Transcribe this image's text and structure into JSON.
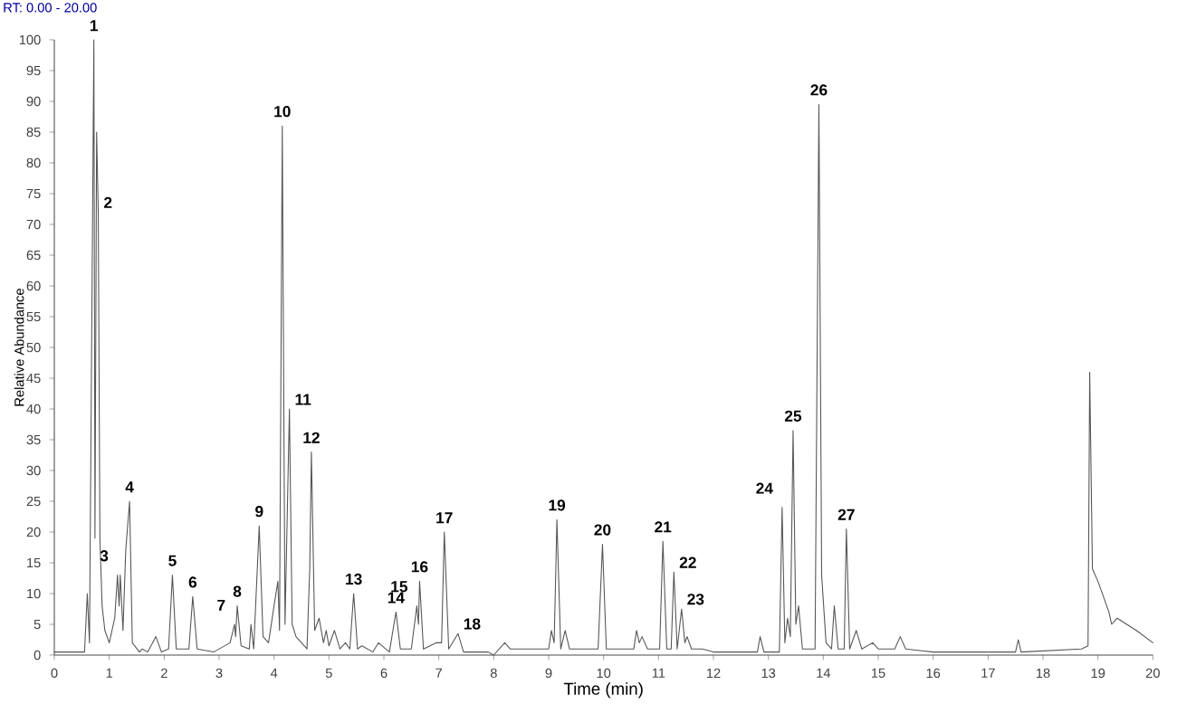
{
  "chart_data": {
    "type": "line",
    "xlabel": "Time (min)",
    "ylabel": "Relative Abundance",
    "color": "#555555",
    "xlim": [
      0,
      20
    ],
    "xticks": [
      0,
      1,
      2,
      3,
      4,
      5,
      6,
      7,
      8,
      9,
      10,
      11,
      12,
      13,
      14,
      15,
      16,
      17,
      18,
      19,
      20
    ],
    "ylim": [
      0,
      100
    ],
    "yticks": [
      0,
      5,
      10,
      15,
      20,
      25,
      30,
      35,
      40,
      45,
      50,
      55,
      60,
      65,
      70,
      75,
      80,
      85,
      90,
      95,
      100
    ],
    "x": [
      0,
      0.55,
      0.6,
      0.64,
      0.72,
      0.74,
      0.77,
      0.8,
      0.83,
      0.87,
      0.92,
      1.0,
      1.1,
      1.15,
      1.18,
      1.2,
      1.25,
      1.3,
      1.37,
      1.42,
      1.55,
      1.6,
      1.7,
      1.85,
      1.95,
      2.08,
      2.15,
      2.22,
      2.45,
      2.52,
      2.6,
      2.9,
      3.2,
      3.28,
      3.3,
      3.33,
      3.4,
      3.55,
      3.58,
      3.63,
      3.73,
      3.8,
      3.9,
      4.0,
      4.07,
      4.1,
      4.15,
      4.2,
      4.28,
      4.33,
      4.4,
      4.5,
      4.6,
      4.65,
      4.68,
      4.74,
      4.82,
      4.9,
      4.95,
      5.0,
      5.1,
      5.2,
      5.3,
      5.38,
      5.45,
      5.52,
      5.6,
      5.8,
      5.9,
      6.1,
      6.22,
      6.3,
      6.5,
      6.6,
      6.63,
      6.65,
      6.72,
      6.95,
      7.05,
      7.1,
      7.18,
      7.35,
      7.45,
      7.9,
      8.0,
      8.2,
      8.3,
      9.0,
      9.05,
      9.1,
      9.15,
      9.22,
      9.3,
      9.38,
      9.9,
      9.98,
      10.05,
      10.55,
      10.6,
      10.65,
      10.7,
      10.8,
      11.02,
      11.08,
      11.15,
      11.23,
      11.28,
      11.34,
      11.42,
      11.48,
      11.52,
      11.6,
      11.8,
      12.0,
      12.8,
      12.85,
      12.92,
      13.2,
      13.25,
      13.3,
      13.35,
      13.4,
      13.45,
      13.5,
      13.55,
      13.62,
      13.85,
      13.92,
      13.97,
      14.05,
      14.15,
      14.2,
      14.27,
      14.38,
      14.42,
      14.48,
      14.6,
      14.7,
      14.9,
      15.0,
      15.3,
      15.4,
      15.5,
      16.0,
      17.0,
      17.5,
      17.55,
      17.6,
      18.7,
      18.82,
      18.85,
      18.9,
      19.0,
      19.2,
      19.25,
      19.35,
      19.7,
      20
    ],
    "values": [
      0.5,
      0.5,
      10,
      2,
      100,
      19,
      85,
      72,
      19,
      8,
      4,
      2,
      6,
      13,
      8,
      13,
      4,
      17,
      25,
      2,
      0.5,
      1,
      0.5,
      3,
      0.5,
      1,
      13,
      1,
      1,
      9.5,
      1,
      0.5,
      2,
      5,
      3,
      8,
      1.5,
      1,
      5,
      1,
      21,
      3,
      2,
      8,
      12,
      4,
      86,
      5,
      40,
      5,
      3,
      2,
      1,
      14,
      33,
      4,
      6,
      2,
      4,
      1.5,
      4,
      1,
      2,
      1,
      10,
      1,
      1.5,
      0.5,
      2,
      0.5,
      7,
      1,
      1,
      8,
      5,
      12,
      1,
      2,
      2,
      20,
      1,
      3.5,
      0.5,
      0.5,
      0,
      2,
      1,
      1,
      4,
      2,
      22,
      1,
      4,
      1,
      1,
      18,
      1,
      1,
      4,
      2,
      3,
      1,
      1,
      18.5,
      1,
      1,
      13.5,
      1,
      7.5,
      2,
      3,
      1,
      1,
      0.5,
      0.5,
      3,
      0.5,
      0.5,
      24,
      2,
      6,
      3,
      36.5,
      5,
      8,
      1,
      1,
      89.5,
      13,
      2,
      1,
      8,
      1,
      1,
      20.5,
      1,
      4,
      1,
      2,
      1,
      1,
      3,
      1,
      0.5,
      0.5,
      0.5,
      2.5,
      0.5,
      1,
      1.5,
      46,
      14,
      12,
      7,
      5,
      6,
      4,
      2
    ],
    "annotations": [
      "RT: 0.00 - 20.00",
      {
        "text": "1",
        "x": 0.72,
        "y": 100
      },
      {
        "text": "2",
        "x": 0.8,
        "y": 72
      },
      {
        "text": "3",
        "x": 1.15,
        "y": 13
      },
      {
        "text": "4",
        "x": 1.37,
        "y": 25
      },
      {
        "text": "5",
        "x": 2.15,
        "y": 13
      },
      {
        "text": "6",
        "x": 2.52,
        "y": 9.5
      },
      {
        "text": "7",
        "x": 3.28,
        "y": 5
      },
      {
        "text": "8",
        "x": 3.33,
        "y": 8
      },
      {
        "text": "9",
        "x": 3.73,
        "y": 21
      },
      {
        "text": "10",
        "x": 4.15,
        "y": 86
      },
      {
        "text": "11",
        "x": 4.28,
        "y": 40
      },
      {
        "text": "12",
        "x": 4.68,
        "y": 33
      },
      {
        "text": "13",
        "x": 5.45,
        "y": 10
      },
      {
        "text": "14",
        "x": 6.22,
        "y": 7
      },
      {
        "text": "15",
        "x": 6.6,
        "y": 8
      },
      {
        "text": "16",
        "x": 6.65,
        "y": 12
      },
      {
        "text": "17",
        "x": 7.1,
        "y": 20
      },
      {
        "text": "18",
        "x": 7.35,
        "y": 3.5
      },
      {
        "text": "19",
        "x": 9.15,
        "y": 22
      },
      {
        "text": "20",
        "x": 9.98,
        "y": 18
      },
      {
        "text": "21",
        "x": 11.08,
        "y": 18.5
      },
      {
        "text": "22",
        "x": 11.28,
        "y": 13.5
      },
      {
        "text": "23",
        "x": 11.42,
        "y": 7.5
      },
      {
        "text": "24",
        "x": 13.25,
        "y": 24
      },
      {
        "text": "25",
        "x": 13.45,
        "y": 36.5
      },
      {
        "text": "26",
        "x": 13.92,
        "y": 89.5
      },
      {
        "text": "27",
        "x": 14.42,
        "y": 20.5
      }
    ]
  }
}
